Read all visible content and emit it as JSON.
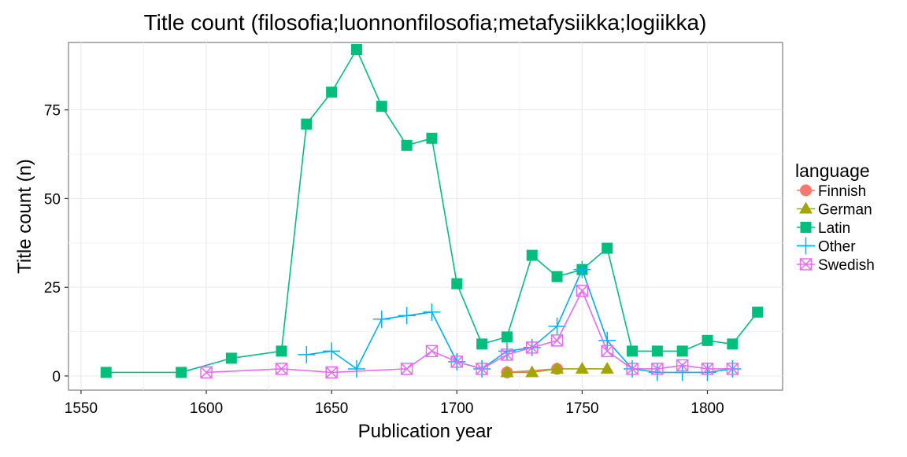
{
  "chart_data": {
    "type": "line",
    "title": "Title count (filosofia;luonnonfilosofia;metafysiikka;logiikka)",
    "xlabel": "Publication year",
    "ylabel": "Title count (n)",
    "xlim": [
      1545,
      1830
    ],
    "ylim": [
      -4,
      94
    ],
    "x_ticks": [
      1550,
      1600,
      1650,
      1700,
      1750,
      1800
    ],
    "y_ticks": [
      0,
      25,
      50,
      75
    ],
    "grid": true,
    "legend": {
      "title": "language",
      "position": "right"
    },
    "series": [
      {
        "name": "Finnish",
        "color": "#F8766D",
        "marker": "circle",
        "x": [
          1720,
          1740
        ],
        "y": [
          1,
          2
        ]
      },
      {
        "name": "German",
        "color": "#A3A500",
        "marker": "triangle",
        "x": [
          1720,
          1730,
          1740,
          1750,
          1760
        ],
        "y": [
          1,
          1,
          2,
          2,
          2
        ]
      },
      {
        "name": "Latin",
        "color": "#00BF7D",
        "marker": "square",
        "x": [
          1560,
          1590,
          1610,
          1630,
          1640,
          1650,
          1660,
          1670,
          1680,
          1690,
          1700,
          1710,
          1720,
          1730,
          1740,
          1750,
          1760,
          1770,
          1780,
          1790,
          1800,
          1810,
          1820
        ],
        "y": [
          1,
          1,
          5,
          7,
          71,
          80,
          92,
          76,
          65,
          67,
          26,
          9,
          11,
          34,
          28,
          30,
          36,
          7,
          7,
          7,
          10,
          9,
          18
        ]
      },
      {
        "name": "Other",
        "color": "#00B0F6",
        "marker": "plus",
        "x": [
          1640,
          1650,
          1660,
          1670,
          1680,
          1690,
          1700,
          1710,
          1720,
          1730,
          1740,
          1750,
          1760,
          1770,
          1780,
          1790,
          1800,
          1810
        ],
        "y": [
          6,
          7,
          2,
          16,
          17,
          18,
          4,
          2,
          7,
          8,
          14,
          30,
          10,
          2,
          1,
          1,
          1,
          2
        ]
      },
      {
        "name": "Swedish",
        "color": "#E76BF3",
        "marker": "boxx",
        "x": [
          1600,
          1630,
          1650,
          1680,
          1690,
          1700,
          1710,
          1720,
          1730,
          1740,
          1750,
          1760,
          1770,
          1780,
          1790,
          1800,
          1810
        ],
        "y": [
          1,
          2,
          1,
          2,
          7,
          4,
          2,
          6,
          8,
          10,
          24,
          7,
          2,
          2,
          3,
          2,
          2
        ]
      }
    ]
  }
}
